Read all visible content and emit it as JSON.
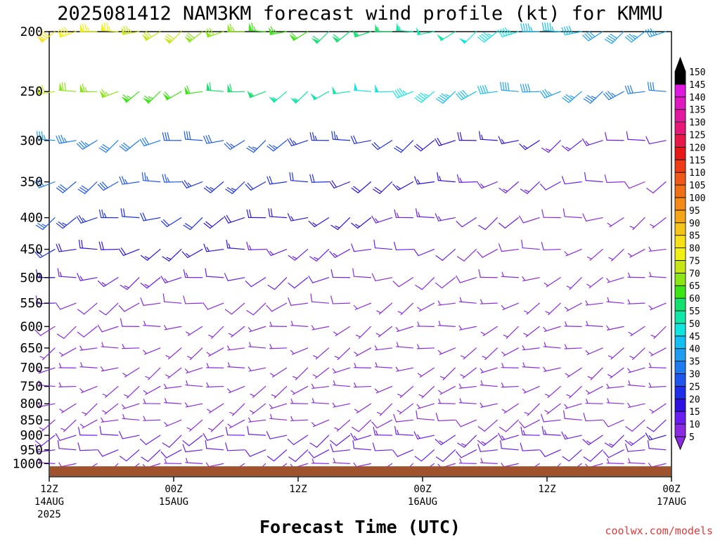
{
  "chart_data": {
    "type": "wind-barb-profile",
    "title": "2025081412 NAM3KM forecast wind profile (kt) for KMMU",
    "xlabel": "Forecast Time (UTC)",
    "ylabel": "",
    "credit": "coolwx.com/models",
    "y_axis": {
      "scale": "log",
      "direction": "inverted",
      "range": [
        200,
        1050
      ],
      "ticks": [
        200,
        250,
        300,
        350,
        400,
        450,
        500,
        550,
        600,
        650,
        700,
        750,
        800,
        850,
        900,
        950,
        1000
      ]
    },
    "x_axis": {
      "range_hours": [
        0,
        60
      ],
      "ticks": [
        {
          "hour": 0,
          "label": "12Z",
          "sub1": "14AUG",
          "sub2": "2025"
        },
        {
          "hour": 12,
          "label": "00Z",
          "sub1": "15AUG",
          "sub2": ""
        },
        {
          "hour": 24,
          "label": "12Z",
          "sub1": "",
          "sub2": ""
        },
        {
          "hour": 36,
          "label": "00Z",
          "sub1": "16AUG",
          "sub2": ""
        },
        {
          "hour": 48,
          "label": "12Z",
          "sub1": "",
          "sub2": ""
        },
        {
          "hour": 60,
          "label": "00Z",
          "sub1": "17AUG",
          "sub2": ""
        }
      ]
    },
    "colorbar": {
      "levels": [
        5,
        10,
        15,
        20,
        25,
        30,
        35,
        40,
        45,
        50,
        55,
        60,
        65,
        70,
        75,
        80,
        85,
        90,
        95,
        100,
        105,
        110,
        115,
        120,
        125,
        130,
        135,
        140,
        145,
        150
      ],
      "colors": [
        "#8a2be2",
        "#6a1ff0",
        "#2f12e0",
        "#1e2fe8",
        "#1f56f0",
        "#1e7bf0",
        "#1e9ef2",
        "#12c0f2",
        "#10e6e0",
        "#10e8a8",
        "#14e070",
        "#3ce614",
        "#8ae614",
        "#c8e614",
        "#f0f014",
        "#f8e018",
        "#f5c418",
        "#f5a518",
        "#f58a18",
        "#f07018",
        "#f05a18",
        "#ee3c16",
        "#e81818",
        "#e81848",
        "#e81878",
        "#e418a0",
        "#e018c0",
        "#e018e0",
        "#000000"
      ]
    },
    "terrain_color": "#a0522d",
    "series": [
      {
        "pressure": 200,
        "speeds": [
          80,
          35
        ]
      },
      {
        "pressure": 250,
        "speeds": [
          70,
          30
        ]
      },
      {
        "pressure": 300,
        "speeds": [
          35,
          10
        ]
      },
      {
        "pressure": 350,
        "speeds": [
          30,
          8
        ]
      },
      {
        "pressure": 400,
        "speeds": [
          25,
          6
        ]
      },
      {
        "pressure": 450,
        "speeds": [
          20,
          5
        ]
      },
      {
        "pressure": 500,
        "speeds": [
          15,
          5
        ]
      },
      {
        "pressure": 550,
        "speeds": [
          10,
          5
        ]
      },
      {
        "pressure": 600,
        "speeds": [
          8,
          5
        ]
      },
      {
        "pressure": 650,
        "speeds": [
          5,
          5
        ]
      },
      {
        "pressure": 700,
        "speeds": [
          5,
          5
        ]
      },
      {
        "pressure": 750,
        "speeds": [
          5,
          5
        ]
      },
      {
        "pressure": 800,
        "speeds": [
          5,
          5
        ]
      },
      {
        "pressure": 850,
        "speeds": [
          5,
          10
        ]
      },
      {
        "pressure": 900,
        "speeds": [
          10,
          15
        ]
      },
      {
        "pressure": 950,
        "speeds": [
          12,
          10
        ]
      },
      {
        "pressure": 1000,
        "speeds": [
          5,
          5
        ]
      }
    ]
  }
}
